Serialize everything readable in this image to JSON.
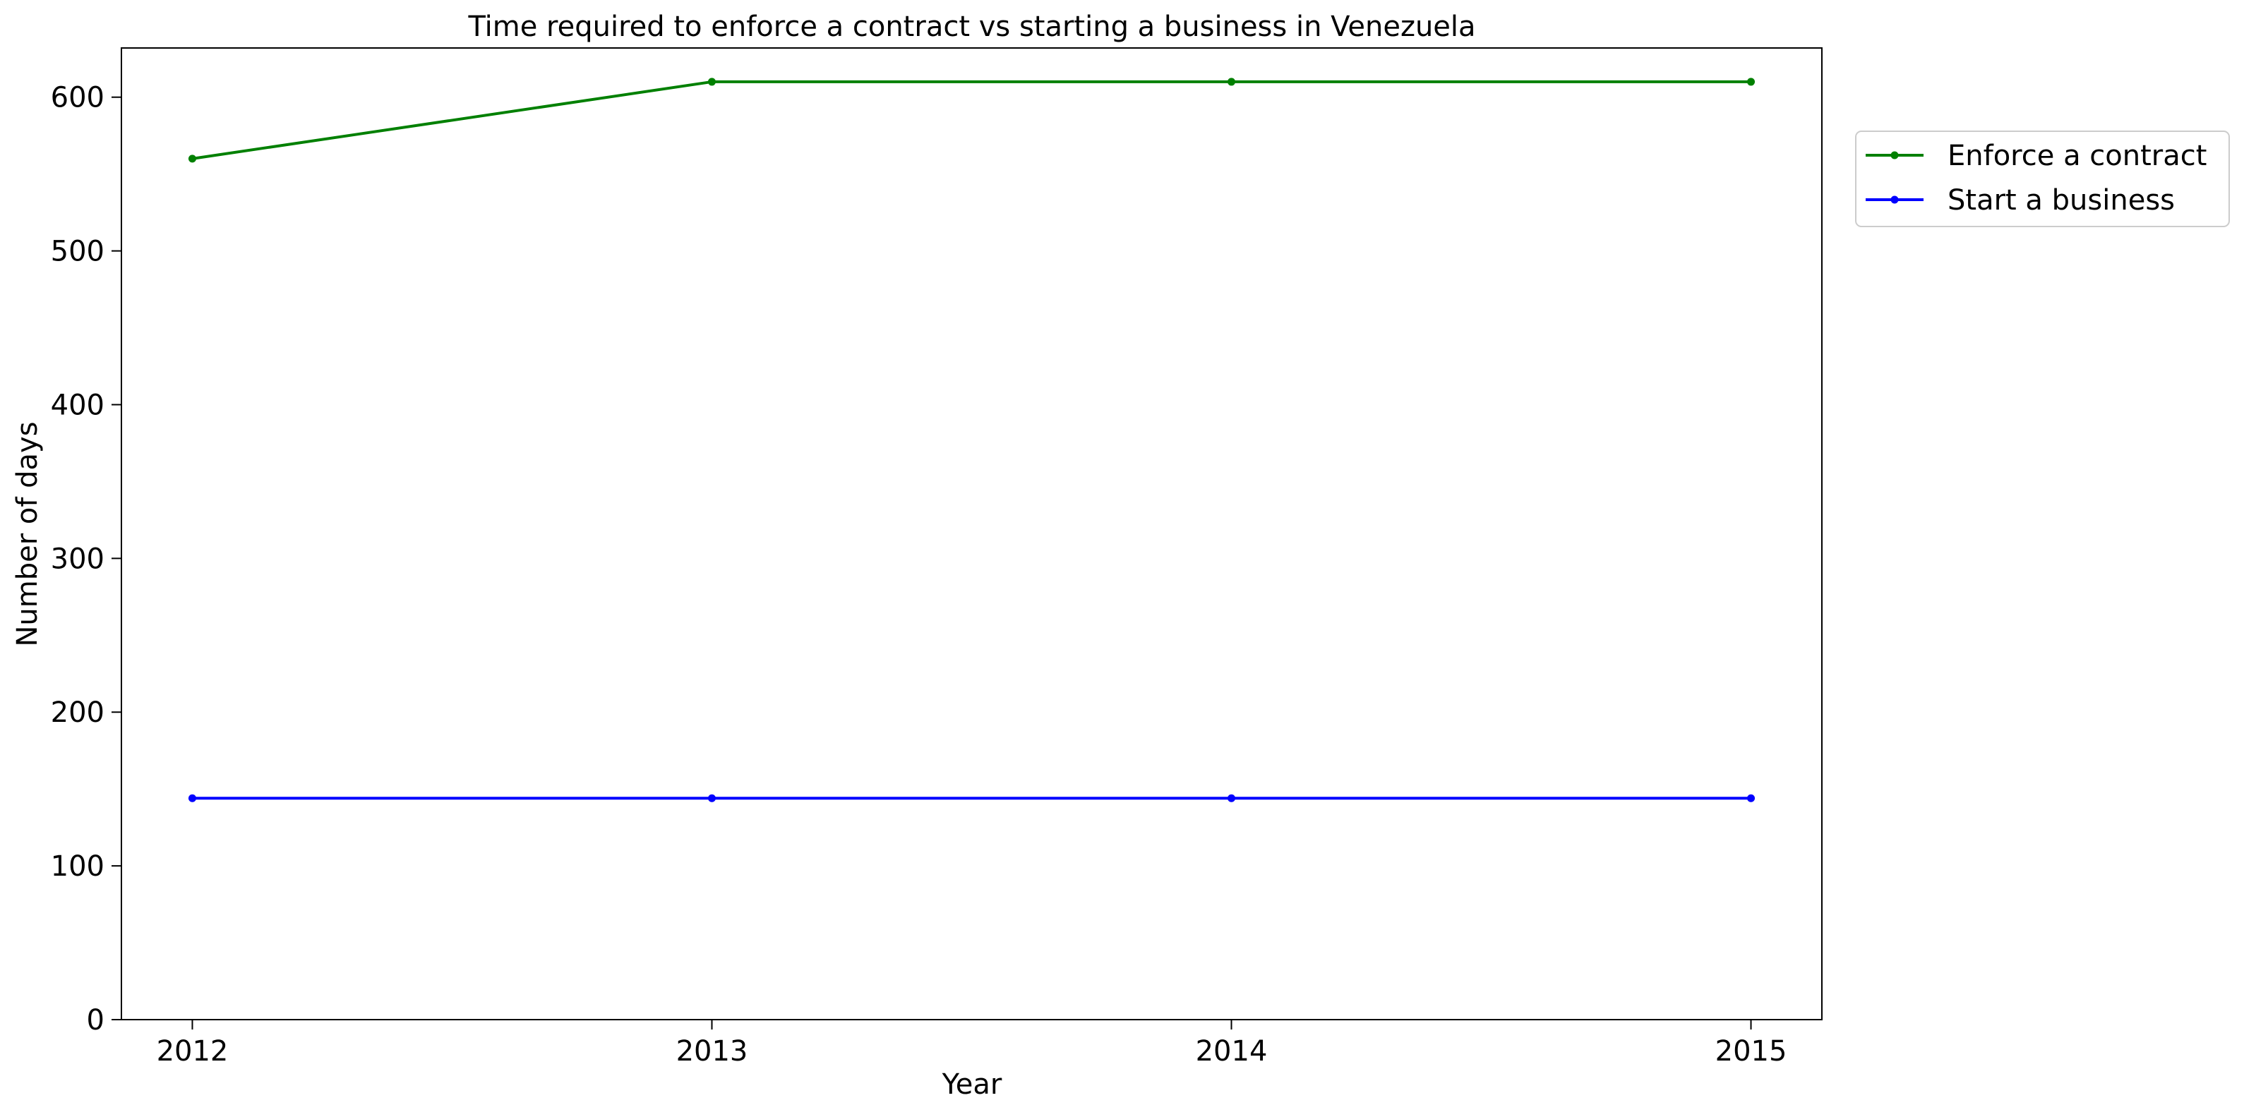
{
  "chart_data": {
    "type": "line",
    "title": "Time required to enforce a contract vs starting a business in Venezuela",
    "xlabel": "Year",
    "ylabel": "Number of days",
    "x": [
      2012,
      2013,
      2014,
      2015
    ],
    "x_tick_labels": [
      "2012",
      "2013",
      "2014",
      "2015"
    ],
    "ylim": [
      0,
      632
    ],
    "y_ticks": [
      0,
      100,
      200,
      300,
      400,
      500,
      600
    ],
    "y_tick_labels": [
      "0",
      "100",
      "200",
      "300",
      "400",
      "500",
      "600"
    ],
    "grid": false,
    "legend_position": "upper-right-outside",
    "series": [
      {
        "name": "Enforce a contract",
        "color": "#008000",
        "marker": "dot",
        "values": [
          560,
          610,
          610,
          610
        ]
      },
      {
        "name": "Start a business",
        "color": "#0000ff",
        "marker": "dot",
        "values": [
          144,
          144,
          144,
          144
        ]
      }
    ]
  }
}
